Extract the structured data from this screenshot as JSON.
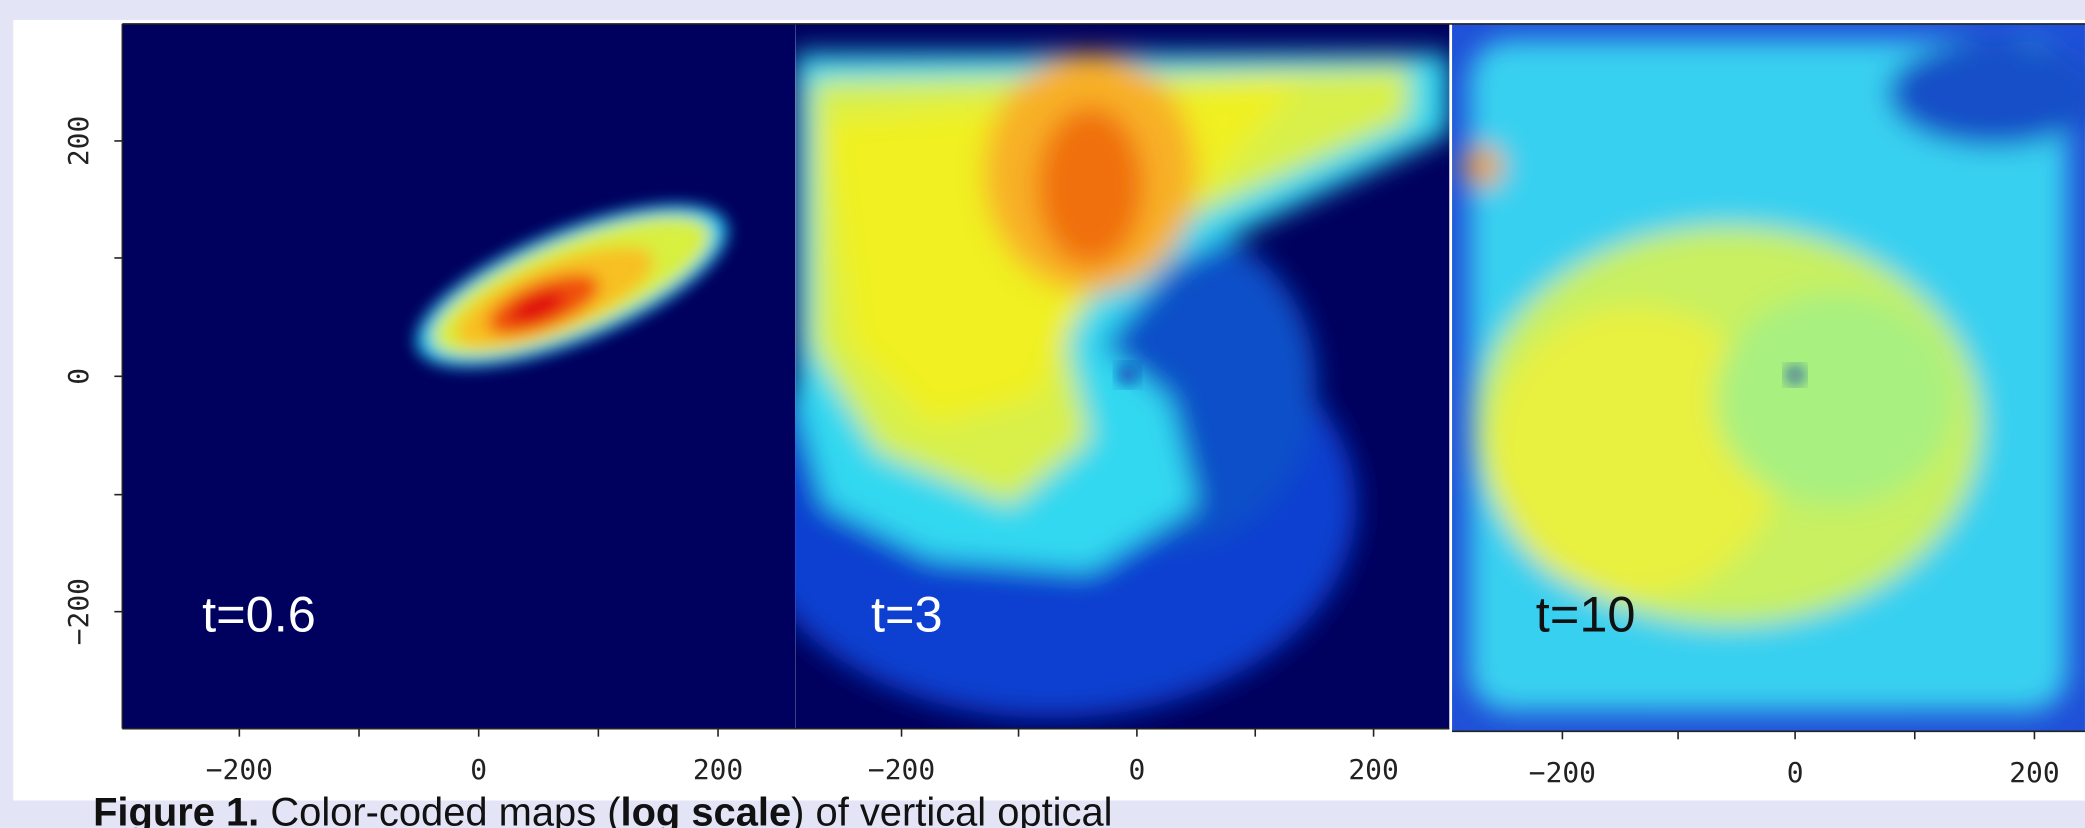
{
  "yticks": [
    "200",
    "0",
    "−200"
  ],
  "panels": [
    {
      "label": "t=0.6",
      "xticks": [
        "−200",
        "0",
        "200"
      ]
    },
    {
      "label": "t=3",
      "xticks": [
        "−200",
        "0",
        "200"
      ]
    },
    {
      "label": "t=10",
      "xticks": [
        "−200",
        "0",
        "200"
      ]
    }
  ],
  "caption": {
    "figure": "Figure 1.",
    "text1": " Color-coded maps (",
    "bold": "log scale",
    "text2": ") of vertical optical"
  }
}
